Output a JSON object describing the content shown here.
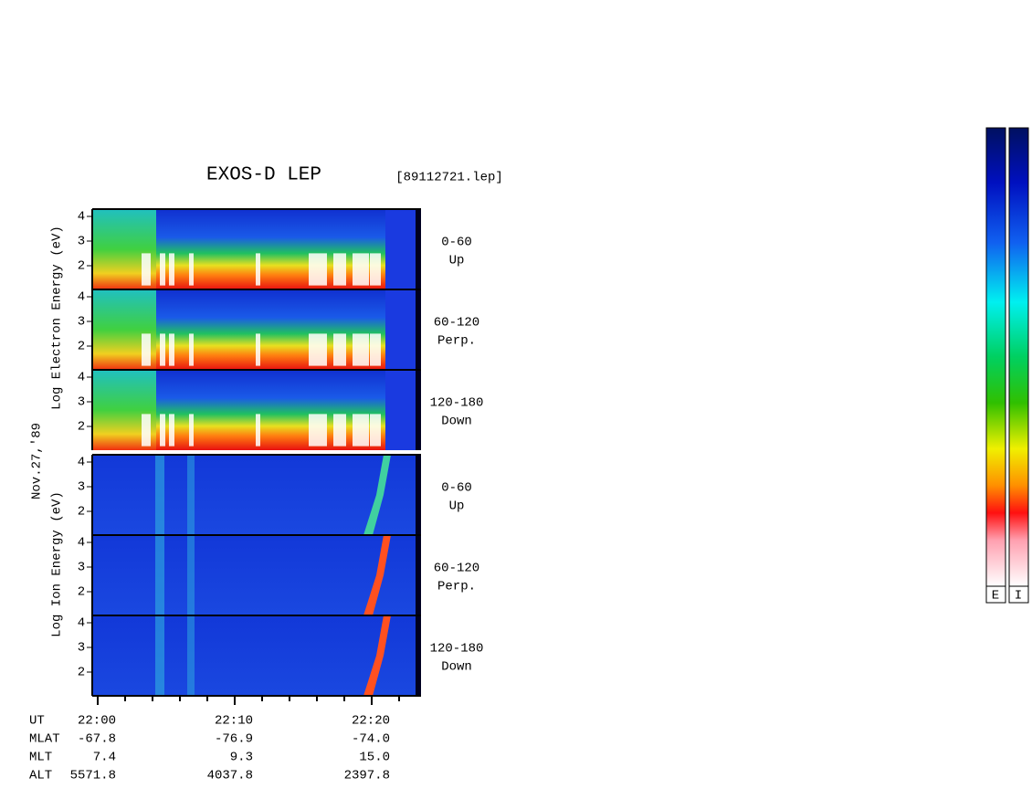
{
  "header": {
    "title": "EXOS-D LEP",
    "file": "[89112721.lep]",
    "date": "Nov.27,'89"
  },
  "electron": {
    "axis_label": "Log  Electron  Energy (eV)",
    "panels": [
      {
        "range": "0-60",
        "direction": "Up"
      },
      {
        "range": "60-120",
        "direction": "Perp."
      },
      {
        "range": "120-180",
        "direction": "Down"
      }
    ]
  },
  "ion": {
    "axis_label": "Log  Ion  Energy (eV)",
    "panels": [
      {
        "range": "0-60",
        "direction": "Up"
      },
      {
        "range": "60-120",
        "direction": "Perp."
      },
      {
        "range": "120-180",
        "direction": "Down"
      }
    ]
  },
  "energy_ticks": [
    "4",
    "3",
    "2"
  ],
  "orbit": {
    "rows": [
      [
        "UT",
        "22:00",
        "22:10",
        "22:20"
      ],
      [
        "MLAT",
        "-67.8",
        "-76.9",
        "-74.0"
      ],
      [
        "MLT",
        "7.4",
        "9.3",
        "15.0"
      ],
      [
        "ALT",
        "5571.8",
        "4037.8",
        "2397.8"
      ]
    ]
  },
  "colorbars": [
    "E",
    "I"
  ]
}
